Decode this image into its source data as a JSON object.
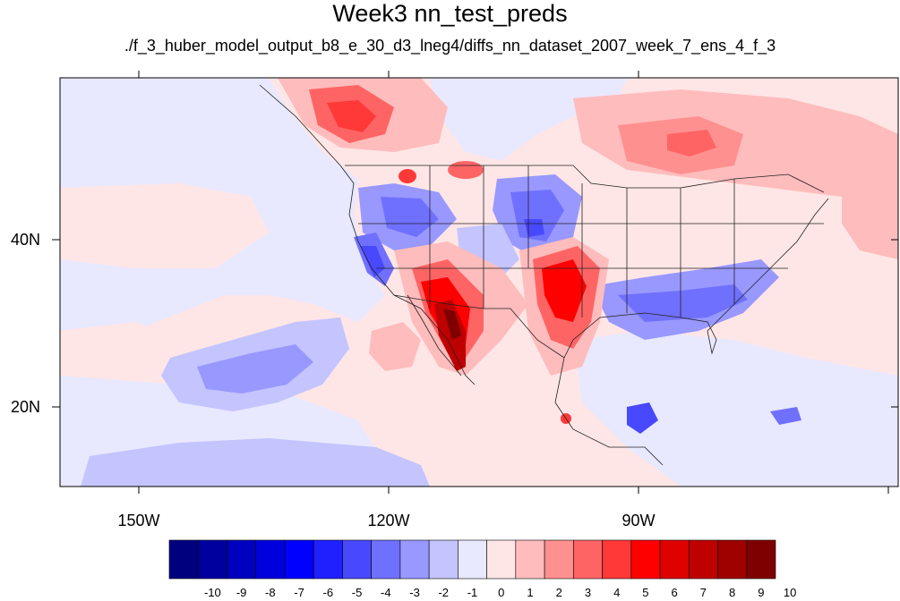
{
  "title": "Week3 nn_test_preds",
  "subtitle": "./f_3_huber_model_output_b8_e_30_d3_lneg4/diffs_nn_dataset_2007_week_7_ens_4_f_3",
  "lat_labels": [
    "40N",
    "20N"
  ],
  "lon_labels": [
    "150W",
    "120W",
    "90W"
  ],
  "colorbar": {
    "labels": [
      "-10",
      "-9",
      "-8",
      "-7",
      "-6",
      "-5",
      "-4",
      "-3",
      "-2",
      "-1",
      "0",
      "1",
      "2",
      "3",
      "4",
      "5",
      "6",
      "7",
      "8",
      "9",
      "10"
    ],
    "colors": [
      "#00007f",
      "#00009f",
      "#0000bf",
      "#0000df",
      "#0000ff",
      "#2020ff",
      "#4848ff",
      "#7070ff",
      "#9898ff",
      "#c4c4ff",
      "#e8e8ff",
      "#ffe6e6",
      "#ffbcbc",
      "#ff9090",
      "#ff6464",
      "#ff3838",
      "#ff0000",
      "#df0000",
      "#bf0000",
      "#9f0000",
      "#7f0000"
    ]
  }
}
